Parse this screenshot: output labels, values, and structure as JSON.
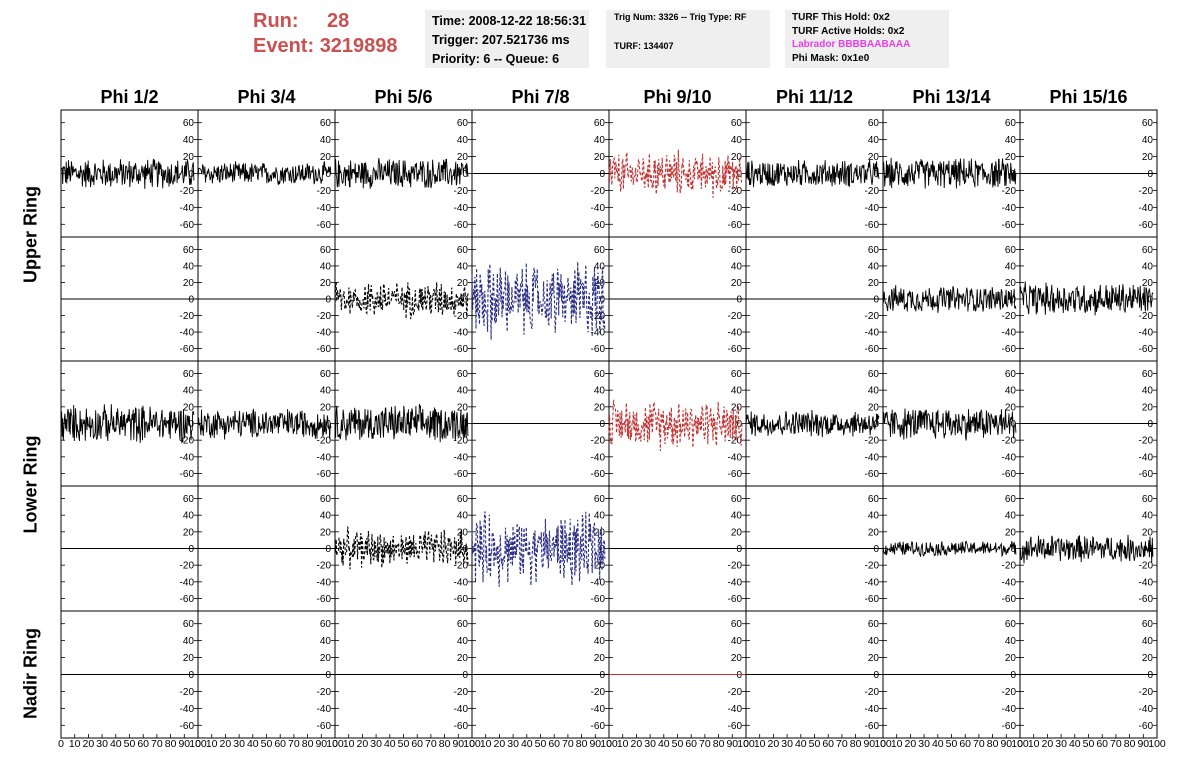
{
  "header": {
    "run_label": "Run:",
    "run_value": "28",
    "event_label": "Event:",
    "event_value": "3219898",
    "time_line": "Time: 2008-12-22 18:56:31",
    "trigger_line": "Trigger: 207.521736 ms",
    "priority_line": "Priority: 6 -- Queue: 6",
    "trig_num_line": "Trig Num: 3326 -- Trig Type: RF",
    "turf_line": "TURF: 134407",
    "turf_this_hold": "TURF This Hold: 0x2",
    "turf_active_holds": "TURF Active Holds: 0x2",
    "labrador": "Labrador BBBBAABAAA",
    "phi_mask": "Phi Mask: 0x1e0"
  },
  "columns": [
    "Phi 1/2",
    "Phi 3/4",
    "Phi 5/6",
    "Phi 7/8",
    "Phi 9/10",
    "Phi 11/12",
    "Phi 13/14",
    "Phi 15/16"
  ],
  "rings": [
    "Upper Ring",
    "Lower Ring",
    "Nadir Ring"
  ],
  "colors": {
    "run_text": "#c9514f",
    "labrador": "#e83fe6",
    "trace_black": "#000000",
    "trace_red": "#c23232",
    "trace_blue": "#2b2e86",
    "info_box": "#efefef"
  },
  "chart_data": {
    "type": "line",
    "grid": false,
    "xlim": [
      0,
      100
    ],
    "ylim": [
      -75,
      75
    ],
    "yticks": [
      -60,
      -40,
      -20,
      0,
      20,
      40,
      60
    ],
    "xtick_labels": [
      "0",
      "10",
      "20",
      "30",
      "40",
      "50",
      "60",
      "70",
      "80",
      "90",
      "100"
    ],
    "rows": [
      {
        "ring": "Upper Ring",
        "row": 1,
        "panels": [
          {
            "column": "Phi 1/2",
            "amplitude": 20,
            "style": "solid",
            "color": "black"
          },
          {
            "column": "Phi 3/4",
            "amplitude": 15,
            "style": "solid",
            "color": "black"
          },
          {
            "column": "Phi 5/6",
            "amplitude": 20,
            "style": "solid",
            "color": "black"
          },
          {
            "column": "Phi 7/8",
            "amplitude": 0,
            "style": "flat",
            "color": "black"
          },
          {
            "column": "Phi 9/10",
            "amplitude": 25,
            "style": "dashed",
            "color": "red"
          },
          {
            "column": "Phi 11/12",
            "amplitude": 18,
            "style": "solid",
            "color": "black"
          },
          {
            "column": "Phi 13/14",
            "amplitude": 20,
            "style": "solid",
            "color": "black"
          },
          {
            "column": "Phi 15/16",
            "amplitude": 0,
            "style": "flat",
            "color": "black"
          }
        ]
      },
      {
        "ring": "Upper Ring",
        "row": 2,
        "panels": [
          {
            "column": "Phi 1/2",
            "amplitude": 0,
            "style": "flat",
            "color": "black"
          },
          {
            "column": "Phi 3/4",
            "amplitude": 0,
            "style": "flat",
            "color": "black"
          },
          {
            "column": "Phi 5/6",
            "amplitude": 22,
            "style": "dashed",
            "color": "black"
          },
          {
            "column": "Phi 7/8",
            "amplitude": 45,
            "style": "dashed",
            "color": "blue"
          },
          {
            "column": "Phi 9/10",
            "amplitude": 0,
            "style": "flat",
            "color": "black"
          },
          {
            "column": "Phi 11/12",
            "amplitude": 0,
            "style": "flat",
            "color": "black"
          },
          {
            "column": "Phi 13/14",
            "amplitude": 18,
            "style": "solid",
            "color": "black"
          },
          {
            "column": "Phi 15/16",
            "amplitude": 22,
            "style": "solid",
            "color": "black"
          }
        ]
      },
      {
        "ring": "Lower Ring",
        "row": 3,
        "panels": [
          {
            "column": "Phi 1/2",
            "amplitude": 25,
            "style": "solid",
            "color": "black"
          },
          {
            "column": "Phi 3/4",
            "amplitude": 20,
            "style": "solid",
            "color": "black"
          },
          {
            "column": "Phi 5/6",
            "amplitude": 25,
            "style": "solid",
            "color": "black"
          },
          {
            "column": "Phi 7/8",
            "amplitude": 0,
            "style": "flat",
            "color": "black"
          },
          {
            "column": "Phi 9/10",
            "amplitude": 28,
            "style": "dashed",
            "color": "red"
          },
          {
            "column": "Phi 11/12",
            "amplitude": 18,
            "style": "solid",
            "color": "black"
          },
          {
            "column": "Phi 13/14",
            "amplitude": 22,
            "style": "solid",
            "color": "black"
          },
          {
            "column": "Phi 15/16",
            "amplitude": 0,
            "style": "flat",
            "color": "black"
          }
        ]
      },
      {
        "ring": "Lower Ring",
        "row": 4,
        "panels": [
          {
            "column": "Phi 1/2",
            "amplitude": 0,
            "style": "flat",
            "color": "black"
          },
          {
            "column": "Phi 3/4",
            "amplitude": 0,
            "style": "flat",
            "color": "black"
          },
          {
            "column": "Phi 5/6",
            "amplitude": 22,
            "style": "dashed",
            "color": "black"
          },
          {
            "column": "Phi 7/8",
            "amplitude": 40,
            "style": "dashed",
            "color": "blue"
          },
          {
            "column": "Phi 9/10",
            "amplitude": 0,
            "style": "flat",
            "color": "black"
          },
          {
            "column": "Phi 11/12",
            "amplitude": 0,
            "style": "flat",
            "color": "black"
          },
          {
            "column": "Phi 13/14",
            "amplitude": 10,
            "style": "solid",
            "color": "black"
          },
          {
            "column": "Phi 15/16",
            "amplitude": 18,
            "style": "solid",
            "color": "black"
          }
        ]
      },
      {
        "ring": "Nadir Ring",
        "row": 5,
        "panels": [
          {
            "column": "Phi 1/2",
            "amplitude": 0,
            "style": "flat",
            "color": "black"
          },
          {
            "column": "Phi 3/4",
            "amplitude": 0,
            "style": "flat",
            "color": "black"
          },
          {
            "column": "Phi 5/6",
            "amplitude": 0,
            "style": "flat",
            "color": "black"
          },
          {
            "column": "Phi 7/8",
            "amplitude": 0,
            "style": "flat",
            "color": "black"
          },
          {
            "column": "Phi 9/10",
            "amplitude": 0,
            "style": "flat",
            "color": "red"
          },
          {
            "column": "Phi 11/12",
            "amplitude": 0,
            "style": "flat",
            "color": "black"
          },
          {
            "column": "Phi 13/14",
            "amplitude": 0,
            "style": "flat",
            "color": "black"
          },
          {
            "column": "Phi 15/16",
            "amplitude": 0,
            "style": "flat",
            "color": "black"
          }
        ]
      }
    ]
  }
}
